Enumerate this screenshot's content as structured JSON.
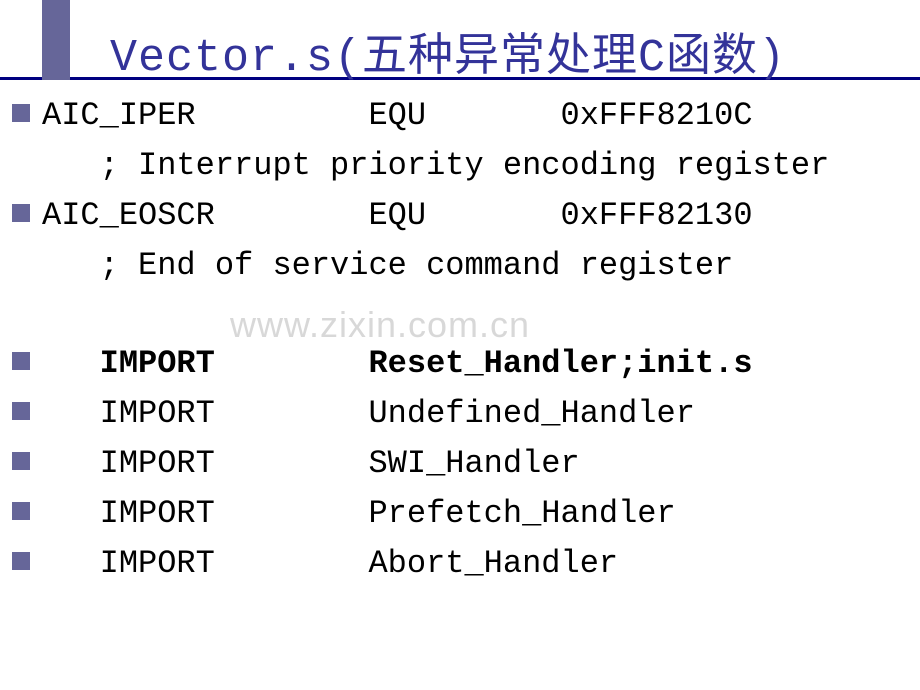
{
  "title": "Vector.s(五种异常处理C函数)",
  "watermark": "www.zixin.com.cn",
  "colors": {
    "accent": "#666699",
    "title": "#333399",
    "underline": "#000080",
    "text": "#000000",
    "watermark": "#d8d8d8",
    "background": "#ffffff"
  },
  "lines": [
    {
      "text": "AIC_IPER         EQU       0xFFF8210C",
      "bold": false
    },
    {
      "text": "   ; Interrupt priority encoding register",
      "bold": false,
      "noBullet": true
    },
    {
      "text": "AIC_EOSCR        EQU       0xFFF82130",
      "bold": false
    },
    {
      "text": "   ; End of service command register",
      "bold": false,
      "noBullet": true
    },
    {
      "spacer": true
    },
    {
      "text": "   IMPORT        Reset_Handler;init.s",
      "bold": true
    },
    {
      "text": "   IMPORT        Undefined_Handler",
      "bold": false
    },
    {
      "text": "   IMPORT        SWI_Handler",
      "bold": false
    },
    {
      "text": "   IMPORT        Prefetch_Handler",
      "bold": false
    },
    {
      "text": "   IMPORT        Abort_Handler",
      "bold": false
    }
  ]
}
